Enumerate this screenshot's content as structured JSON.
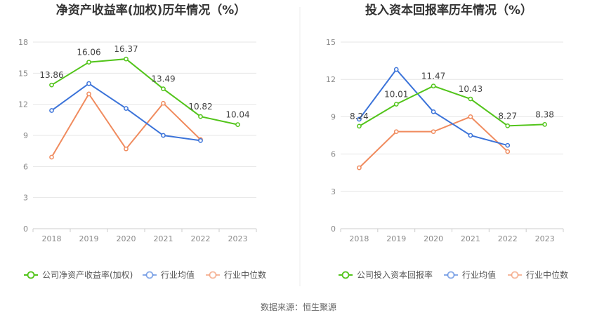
{
  "chart_data": [
    {
      "type": "line",
      "title": "净资产收益率(加权)历年情况（%）",
      "categories": [
        "2018",
        "2019",
        "2020",
        "2021",
        "2022",
        "2023"
      ],
      "ylim": [
        0,
        18
      ],
      "yticks": [
        0,
        3,
        6,
        9,
        12,
        15,
        18
      ],
      "grid": true,
      "legend_position": "bottom",
      "series": [
        {
          "name": "公司净资产收益率(加权)",
          "color": "#52c41a",
          "values": [
            13.86,
            16.06,
            16.37,
            13.49,
            10.82,
            10.04
          ],
          "labels": [
            "13.86",
            "16.06",
            "16.37",
            "13.49",
            "10.82",
            "10.04"
          ]
        },
        {
          "name": "行业均值",
          "color": "#3b73d9",
          "values": [
            11.4,
            14.0,
            11.6,
            9.0,
            8.5,
            null
          ]
        },
        {
          "name": "行业中位数",
          "color": "#f08b5e",
          "values": [
            6.9,
            13.0,
            7.7,
            12.1,
            8.6,
            null
          ]
        }
      ]
    },
    {
      "type": "line",
      "title": "投入资本回报率历年情况（%）",
      "categories": [
        "2018",
        "2019",
        "2020",
        "2021",
        "2022",
        "2023"
      ],
      "ylim": [
        0,
        15
      ],
      "yticks": [
        0,
        3,
        6,
        9,
        12,
        15
      ],
      "grid": true,
      "legend_position": "bottom",
      "series": [
        {
          "name": "公司投入资本回报率",
          "color": "#52c41a",
          "values": [
            8.24,
            10.01,
            11.47,
            10.43,
            8.27,
            8.38
          ],
          "labels": [
            "8.24",
            "10.01",
            "11.47",
            "10.43",
            "8.27",
            "8.38"
          ]
        },
        {
          "name": "行业均值",
          "color": "#3b73d9",
          "values": [
            8.8,
            12.8,
            9.4,
            7.5,
            6.7,
            null
          ]
        },
        {
          "name": "行业中位数",
          "color": "#f08b5e",
          "values": [
            4.9,
            7.8,
            7.8,
            9.0,
            6.2,
            null
          ]
        }
      ]
    }
  ],
  "source_text": "数据来源：恒生聚源"
}
